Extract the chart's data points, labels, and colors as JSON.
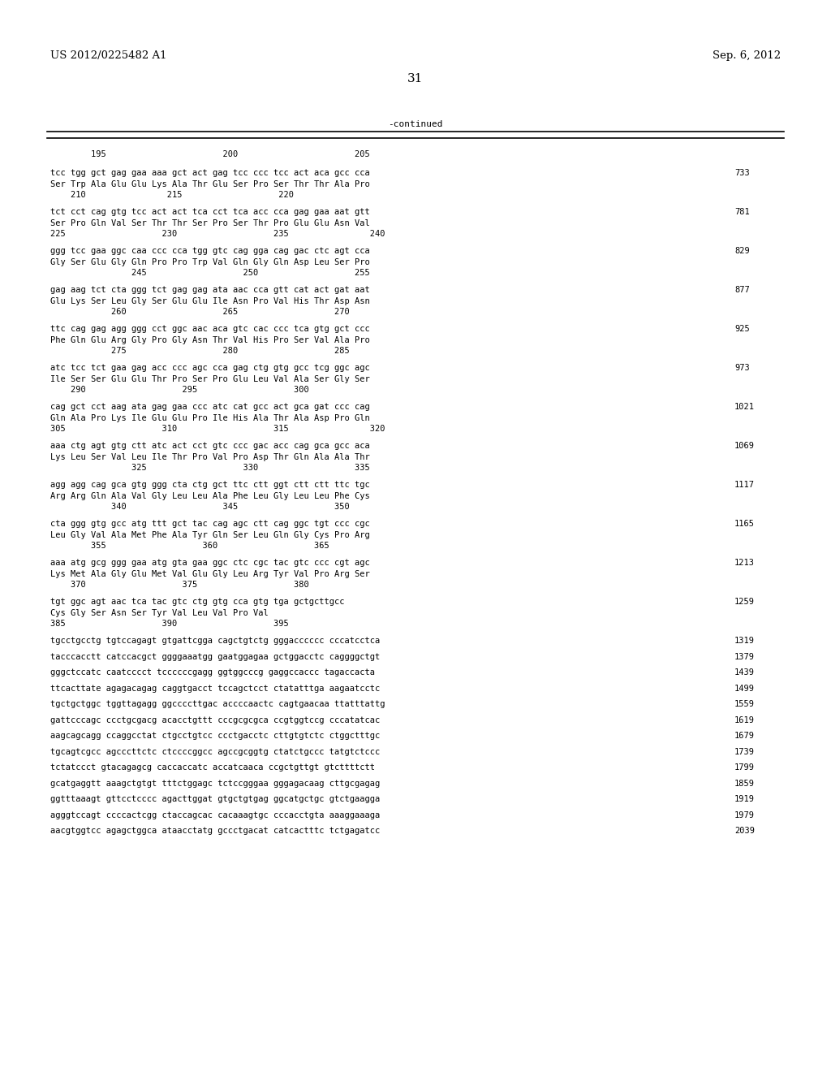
{
  "header_left": "US 2012/0225482 A1",
  "header_right": "Sep. 6, 2012",
  "page_number": "31",
  "continued_label": "-continued",
  "bg_color": "#ffffff",
  "text_color": "#000000",
  "font_size": 7.5,
  "header_font_size": 9.5,
  "page_num_font_size": 11,
  "content": [
    {
      "type": "ruler",
      "text": "        195                       200                       205"
    },
    {
      "type": "blank"
    },
    {
      "type": "seq",
      "dna": "tcc tgg gct gag gaa aaa gct act gag tcc ccc tcc act aca gcc cca",
      "num": "733"
    },
    {
      "type": "aa",
      "text": "Ser Trp Ala Glu Glu Lys Ala Thr Glu Ser Pro Ser Thr Thr Ala Pro"
    },
    {
      "type": "pos",
      "text": "    210                215                   220"
    },
    {
      "type": "blank"
    },
    {
      "type": "seq",
      "dna": "tct cct cag gtg tcc act act tca cct tca acc cca gag gaa aat gtt",
      "num": "781"
    },
    {
      "type": "aa",
      "text": "Ser Pro Gln Val Ser Thr Thr Ser Pro Ser Thr Pro Glu Glu Asn Val"
    },
    {
      "type": "pos",
      "text": "225                   230                   235                240"
    },
    {
      "type": "blank"
    },
    {
      "type": "seq",
      "dna": "ggg tcc gaa ggc caa ccc cca tgg gtc cag gga cag gac ctc agt cca",
      "num": "829"
    },
    {
      "type": "aa",
      "text": "Gly Ser Glu Gly Gln Pro Pro Trp Val Gln Gly Gln Asp Leu Ser Pro"
    },
    {
      "type": "pos",
      "text": "                245                   250                   255"
    },
    {
      "type": "blank"
    },
    {
      "type": "seq",
      "dna": "gag aag tct cta ggg tct gag gag ata aac cca gtt cat act gat aat",
      "num": "877"
    },
    {
      "type": "aa",
      "text": "Glu Lys Ser Leu Gly Ser Glu Glu Ile Asn Pro Val His Thr Asp Asn"
    },
    {
      "type": "pos",
      "text": "            260                   265                   270"
    },
    {
      "type": "blank"
    },
    {
      "type": "seq",
      "dna": "ttc cag gag agg ggg cct ggc aac aca gtc cac ccc tca gtg gct ccc",
      "num": "925"
    },
    {
      "type": "aa",
      "text": "Phe Gln Glu Arg Gly Pro Gly Asn Thr Val His Pro Ser Val Ala Pro"
    },
    {
      "type": "pos",
      "text": "            275                   280                   285"
    },
    {
      "type": "blank"
    },
    {
      "type": "seq",
      "dna": "atc tcc tct gaa gag acc ccc agc cca gag ctg gtg gcc tcg ggc agc",
      "num": "973"
    },
    {
      "type": "aa",
      "text": "Ile Ser Ser Glu Glu Thr Pro Ser Pro Glu Leu Val Ala Ser Gly Ser"
    },
    {
      "type": "pos",
      "text": "    290                   295                   300"
    },
    {
      "type": "blank"
    },
    {
      "type": "seq",
      "dna": "cag gct cct aag ata gag gaa ccc atc cat gcc act gca gat ccc cag",
      "num": "1021"
    },
    {
      "type": "aa",
      "text": "Gln Ala Pro Lys Ile Glu Glu Pro Ile His Ala Thr Ala Asp Pro Gln"
    },
    {
      "type": "pos",
      "text": "305                   310                   315                320"
    },
    {
      "type": "blank"
    },
    {
      "type": "seq",
      "dna": "aaa ctg agt gtg ctt atc act cct gtc ccc gac acc cag gca gcc aca",
      "num": "1069"
    },
    {
      "type": "aa",
      "text": "Lys Leu Ser Val Leu Ile Thr Pro Val Pro Asp Thr Gln Ala Ala Thr"
    },
    {
      "type": "pos",
      "text": "                325                   330                   335"
    },
    {
      "type": "blank"
    },
    {
      "type": "seq",
      "dna": "agg agg cag gca gtg ggg cta ctg gct ttc ctt ggt ctt ctt ttc tgc",
      "num": "1117"
    },
    {
      "type": "aa",
      "text": "Arg Arg Gln Ala Val Gly Leu Leu Ala Phe Leu Gly Leu Leu Phe Cys"
    },
    {
      "type": "pos",
      "text": "            340                   345                   350"
    },
    {
      "type": "blank"
    },
    {
      "type": "seq",
      "dna": "cta ggg gtg gcc atg ttt gct tac cag agc ctt cag ggc tgt ccc cgc",
      "num": "1165"
    },
    {
      "type": "aa",
      "text": "Leu Gly Val Ala Met Phe Ala Tyr Gln Ser Leu Gln Gly Cys Pro Arg"
    },
    {
      "type": "pos",
      "text": "        355                   360                   365"
    },
    {
      "type": "blank"
    },
    {
      "type": "seq",
      "dna": "aaa atg gcg ggg gaa atg gta gaa ggc ctc cgc tac gtc ccc cgt agc",
      "num": "1213"
    },
    {
      "type": "aa",
      "text": "Lys Met Ala Gly Glu Met Val Glu Gly Leu Arg Tyr Val Pro Arg Ser"
    },
    {
      "type": "pos",
      "text": "    370                   375                   380"
    },
    {
      "type": "blank"
    },
    {
      "type": "seq",
      "dna": "tgt ggc agt aac tca tac gtc ctg gtg cca gtg tga gctgcttgcc",
      "num": "1259"
    },
    {
      "type": "aa",
      "text": "Cys Gly Ser Asn Ser Tyr Val Leu Val Pro Val"
    },
    {
      "type": "pos",
      "text": "385                   390                   395"
    },
    {
      "type": "blank"
    },
    {
      "type": "dna_only",
      "dna": "tgcctgcctg tgtccagagt gtgattcgga cagctgtctg gggacccccc cccatcctca",
      "num": "1319"
    },
    {
      "type": "dna_only",
      "dna": "tacccacctt catccacgct ggggaaatgg gaatggagaa gctggacctc caggggctgt",
      "num": "1379"
    },
    {
      "type": "dna_only",
      "dna": "gggctccatc caatcccct tccccccgagg ggtggcccg gaggccaccc tagaccacta",
      "num": "1439"
    },
    {
      "type": "dna_only",
      "dna": "ttcacttate agagacagag caggtgacct tccagctcct ctatatttga aagaatcctc",
      "num": "1499"
    },
    {
      "type": "dna_only",
      "dna": "tgctgctggc tggttagagg ggccccttgac accccaactc cagtgaacaa ttatttattg",
      "num": "1559"
    },
    {
      "type": "dna_only",
      "dna": "gattcccagc ccctgcgacg acacctgttt cccgcgcgca ccgtggtccg cccatatcac",
      "num": "1619"
    },
    {
      "type": "dna_only",
      "dna": "aagcagcagg ccaggcctat ctgcctgtcc ccctgacctc cttgtgtctc ctggctttgc",
      "num": "1679"
    },
    {
      "type": "dna_only",
      "dna": "tgcagtcgcc agcccttctc ctccccggcc agccgcggtg ctatctgccc tatgtctccc",
      "num": "1739"
    },
    {
      "type": "dna_only",
      "dna": "tctatccct gtacagagcg caccaccatc accatcaaca ccgctgttgt gtcttttctt",
      "num": "1799"
    },
    {
      "type": "dna_only",
      "dna": "gcatgaggtt aaagctgtgt tttctggagc tctccgggaa gggagacaag cttgcgagag",
      "num": "1859"
    },
    {
      "type": "dna_only",
      "dna": "ggtttaaagt gttcctcccc agacttggat gtgctgtgag ggcatgctgc gtctgaagga",
      "num": "1919"
    },
    {
      "type": "dna_only",
      "dna": "agggtccagt ccccactcgg ctaccagcac cacaaagtgc cccacctgta aaaggaaaga",
      "num": "1979"
    },
    {
      "type": "dna_only",
      "dna": "aacgtggtcc agagctggca ataacctatg gccctgacat catcactttc tctgagatcc",
      "num": "2039"
    }
  ]
}
